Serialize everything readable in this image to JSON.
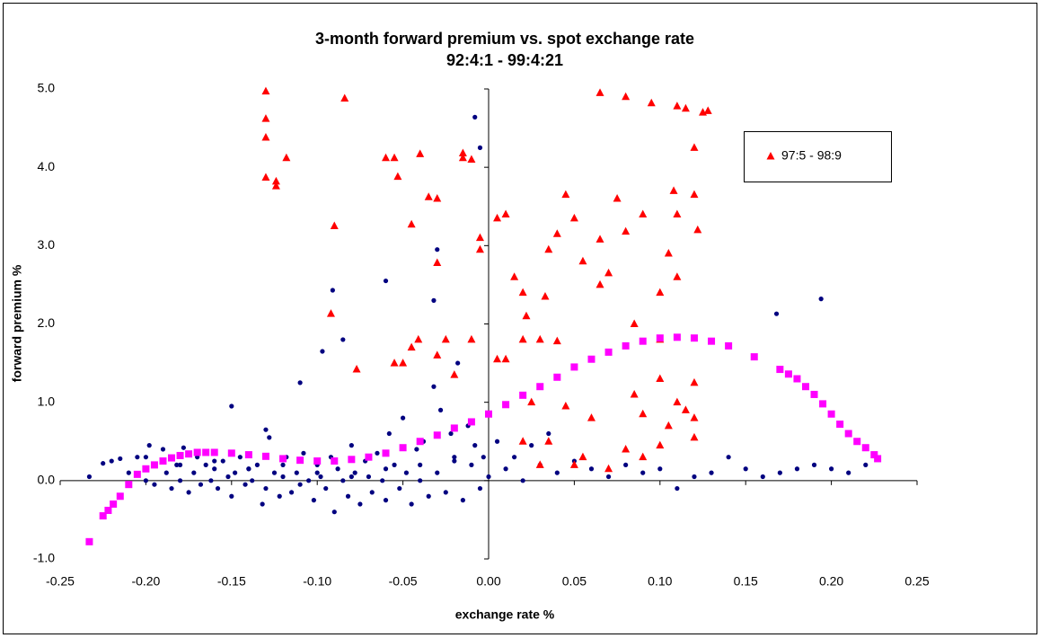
{
  "chart_data": {
    "type": "scatter",
    "title": "3-month forward premium vs. spot exchange rate",
    "subtitle": "92:4:1 - 99:4:21",
    "x_label": "exchange rate %",
    "y_label": "forward premium %",
    "xlim": [
      -0.25,
      0.25
    ],
    "ylim": [
      -1.0,
      5.0
    ],
    "xticks": [
      -0.25,
      {
        "value": -0.2,
        "label": "-0.20"
      },
      -0.15,
      {
        "value": -0.1,
        "label": "-0.10"
      },
      -0.05,
      {
        "value": 0,
        "label": "0.00"
      },
      0.05,
      {
        "value": 0.1,
        "label": "0.10"
      },
      0.15,
      {
        "value": 0.2,
        "label": "0.20"
      },
      0.25
    ],
    "yticks": [
      {
        "value": -1,
        "label": "-1.0"
      },
      {
        "value": 0,
        "label": "0.0"
      },
      {
        "value": 1,
        "label": "1.0"
      },
      {
        "value": 2,
        "label": "2.0"
      },
      {
        "value": 3,
        "label": "3.0"
      },
      {
        "value": 4,
        "label": "4.0"
      },
      {
        "value": 5,
        "label": "5.0"
      }
    ],
    "grid": false,
    "legend": "upper right",
    "series": [
      {
        "color": "#000080",
        "marker": "circle",
        "x": [
          -0.233,
          -0.225,
          -0.22,
          -0.215,
          -0.21,
          -0.205,
          -0.2,
          -0.198,
          -0.195,
          -0.19,
          -0.188,
          -0.185,
          -0.182,
          -0.18,
          -0.178,
          -0.175,
          -0.172,
          -0.17,
          -0.168,
          -0.165,
          -0.162,
          -0.16,
          -0.158,
          -0.155,
          -0.152,
          -0.15,
          -0.148,
          -0.145,
          -0.142,
          -0.14,
          -0.138,
          -0.135,
          -0.132,
          -0.13,
          -0.128,
          -0.125,
          -0.122,
          -0.12,
          -0.118,
          -0.115,
          -0.112,
          -0.11,
          -0.108,
          -0.105,
          -0.102,
          -0.1,
          -0.098,
          -0.095,
          -0.092,
          -0.09,
          -0.088,
          -0.085,
          -0.082,
          -0.08,
          -0.078,
          -0.075,
          -0.072,
          -0.07,
          -0.068,
          -0.065,
          -0.062,
          -0.06,
          -0.058,
          -0.055,
          -0.052,
          -0.05,
          -0.048,
          -0.045,
          -0.042,
          -0.04,
          -0.038,
          -0.035,
          -0.032,
          -0.03,
          -0.028,
          -0.025,
          -0.022,
          -0.02,
          -0.018,
          -0.015,
          -0.012,
          -0.01,
          -0.008,
          -0.005,
          -0.003,
          0.0,
          0.005,
          0.01,
          0.015,
          0.02,
          0.025,
          0.03,
          0.035,
          0.04,
          0.05,
          0.06,
          0.07,
          0.08,
          0.09,
          0.1,
          0.11,
          0.12,
          0.13,
          0.14,
          0.15,
          0.16,
          0.17,
          0.18,
          0.19,
          0.2,
          0.21,
          0.22,
          -0.091,
          -0.097,
          -0.085,
          -0.06,
          -0.03,
          -0.008,
          -0.005,
          -0.032,
          -0.15,
          -0.13,
          0.168,
          0.194,
          -0.11,
          -0.2,
          -0.18,
          -0.16,
          -0.14,
          -0.12,
          -0.1,
          -0.08,
          -0.06,
          -0.04,
          -0.02
        ],
        "y": [
          0.05,
          0.22,
          0.25,
          0.28,
          0.1,
          0.3,
          0.0,
          0.45,
          -0.05,
          0.4,
          0.1,
          -0.1,
          0.2,
          0.0,
          0.42,
          -0.15,
          0.1,
          0.3,
          -0.05,
          0.2,
          0.0,
          0.15,
          -0.1,
          0.25,
          0.05,
          -0.2,
          0.1,
          0.3,
          -0.05,
          0.15,
          0.0,
          0.2,
          -0.3,
          -0.1,
          0.55,
          0.1,
          -0.2,
          0.05,
          0.3,
          -0.15,
          0.1,
          -0.05,
          0.35,
          0.0,
          -0.25,
          0.2,
          0.05,
          -0.1,
          0.3,
          -0.4,
          0.15,
          0.0,
          -0.2,
          0.45,
          0.1,
          -0.3,
          0.25,
          0.05,
          -0.15,
          0.35,
          0.0,
          -0.25,
          0.6,
          0.2,
          -0.1,
          0.8,
          0.1,
          -0.3,
          0.4,
          0.0,
          0.5,
          -0.2,
          1.2,
          0.1,
          0.9,
          -0.15,
          0.6,
          0.3,
          1.5,
          -0.25,
          0.7,
          0.2,
          0.45,
          -0.1,
          0.3,
          0.05,
          0.5,
          0.15,
          0.3,
          0.0,
          0.45,
          0.2,
          0.6,
          0.1,
          0.25,
          0.15,
          0.05,
          0.2,
          0.1,
          0.15,
          -0.1,
          0.05,
          0.1,
          0.3,
          0.15,
          0.05,
          0.1,
          0.15,
          0.2,
          0.15,
          0.1,
          0.2,
          2.43,
          1.65,
          1.8,
          2.55,
          2.95,
          4.64,
          4.25,
          2.3,
          0.95,
          0.65,
          2.13,
          2.32,
          1.25,
          0.3,
          0.2,
          0.25,
          0.15,
          0.2,
          0.1,
          0.05,
          0.15,
          0.2,
          0.25
        ]
      },
      {
        "name": "97:5 - 98:9",
        "color": "#ff0000",
        "marker": "triangle",
        "x": [
          -0.13,
          -0.13,
          -0.13,
          -0.13,
          -0.124,
          -0.124,
          -0.118,
          -0.084,
          -0.09,
          -0.092,
          -0.077,
          -0.06,
          -0.055,
          -0.053,
          -0.055,
          -0.05,
          -0.045,
          -0.045,
          -0.041,
          -0.04,
          -0.035,
          -0.03,
          -0.03,
          -0.03,
          -0.025,
          -0.02,
          -0.015,
          -0.015,
          -0.01,
          -0.01,
          -0.005,
          -0.005,
          0.005,
          0.01,
          0.005,
          0.01,
          0.015,
          0.02,
          0.02,
          0.022,
          0.025,
          0.03,
          0.033,
          0.035,
          0.04,
          0.04,
          0.045,
          0.05,
          0.055,
          0.065,
          0.065,
          0.065,
          0.07,
          0.075,
          0.08,
          0.08,
          0.085,
          0.09,
          0.095,
          0.1,
          0.1,
          0.105,
          0.108,
          0.11,
          0.11,
          0.11,
          0.115,
          0.12,
          0.12,
          0.122,
          0.125,
          0.128,
          0.12,
          0.12,
          0.12,
          0.1,
          0.11,
          0.105,
          0.09,
          0.08,
          0.07,
          0.06,
          0.055,
          0.045,
          0.035,
          0.03,
          0.02,
          0.05,
          0.115,
          0.1,
          0.09,
          0.085
        ],
        "y": [
          4.97,
          4.62,
          4.38,
          3.87,
          3.82,
          3.76,
          4.12,
          4.88,
          3.25,
          2.13,
          1.42,
          4.12,
          4.12,
          3.88,
          1.5,
          1.5,
          1.7,
          3.27,
          1.8,
          4.17,
          3.62,
          3.6,
          2.78,
          1.6,
          1.8,
          1.35,
          4.18,
          4.12,
          4.1,
          1.8,
          3.1,
          2.95,
          3.35,
          3.4,
          1.55,
          1.55,
          2.6,
          1.8,
          2.4,
          2.1,
          1.0,
          1.8,
          2.35,
          2.95,
          3.15,
          1.78,
          3.65,
          3.35,
          2.8,
          4.95,
          3.08,
          2.5,
          2.65,
          3.6,
          4.9,
          3.18,
          2.0,
          3.4,
          4.82,
          2.4,
          1.8,
          2.9,
          3.7,
          4.78,
          3.4,
          2.6,
          4.75,
          3.65,
          4.25,
          3.2,
          4.7,
          4.72,
          1.25,
          0.8,
          0.55,
          0.45,
          1.0,
          0.7,
          0.3,
          0.4,
          0.15,
          0.8,
          0.3,
          0.95,
          0.5,
          0.2,
          0.5,
          0.2,
          0.9,
          1.3,
          0.85,
          1.1
        ]
      },
      {
        "color": "#ff00ff",
        "marker": "square",
        "x": [
          -0.233,
          -0.225,
          -0.222,
          -0.219,
          -0.215,
          -0.21,
          -0.205,
          -0.2,
          -0.195,
          -0.19,
          -0.185,
          -0.18,
          -0.175,
          -0.17,
          -0.165,
          -0.16,
          -0.15,
          -0.14,
          -0.13,
          -0.12,
          -0.11,
          -0.1,
          -0.09,
          -0.08,
          -0.07,
          -0.06,
          -0.05,
          -0.04,
          -0.03,
          -0.02,
          -0.01,
          0,
          0.01,
          0.02,
          0.03,
          0.04,
          0.05,
          0.06,
          0.07,
          0.08,
          0.09,
          0.1,
          0.11,
          0.12,
          0.13,
          0.14,
          0.155,
          0.17,
          0.175,
          0.18,
          0.185,
          0.19,
          0.195,
          0.2,
          0.205,
          0.21,
          0.215,
          0.22,
          0.225,
          0.227
        ],
        "y": [
          -0.78,
          -0.45,
          -0.38,
          -0.3,
          -0.2,
          -0.05,
          0.08,
          0.15,
          0.2,
          0.25,
          0.29,
          0.32,
          0.34,
          0.36,
          0.36,
          0.36,
          0.35,
          0.33,
          0.31,
          0.28,
          0.26,
          0.25,
          0.25,
          0.27,
          0.3,
          0.35,
          0.42,
          0.5,
          0.58,
          0.67,
          0.75,
          0.85,
          0.97,
          1.09,
          1.2,
          1.32,
          1.45,
          1.55,
          1.64,
          1.72,
          1.78,
          1.82,
          1.83,
          1.82,
          1.78,
          1.72,
          1.58,
          1.42,
          1.36,
          1.3,
          1.2,
          1.1,
          0.98,
          0.85,
          0.72,
          0.6,
          0.5,
          0.42,
          0.33,
          0.28
        ]
      }
    ]
  }
}
